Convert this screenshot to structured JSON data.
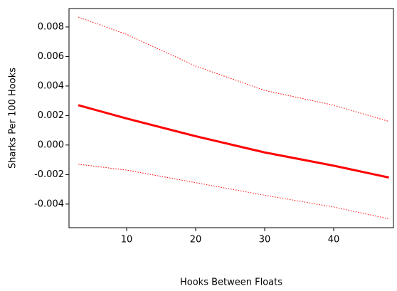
{
  "chart_data": {
    "type": "line",
    "x_label": "Hooks Between Floats",
    "y_label": "Sharks Per 100 Hooks",
    "x": [
      3,
      10,
      20,
      30,
      40,
      48
    ],
    "series": [
      {
        "color": "#ff0000",
        "line_style": "dotted",
        "values": [
          0.00867,
          0.0075,
          0.00535,
          0.0037,
          0.0027,
          0.0016
        ]
      },
      {
        "color": "#ff0000",
        "line_style": "solid",
        "values": [
          0.0027,
          0.0018,
          0.0006,
          -0.0005,
          -0.0014,
          -0.0022
        ]
      },
      {
        "color": "#ff0000",
        "line_style": "dotted",
        "values": [
          -0.0013,
          -0.0017,
          -0.00255,
          -0.0034,
          -0.0042,
          -0.005
        ]
      }
    ],
    "xlim": [
      1.65,
      48.66
    ],
    "xticks": [
      10,
      20,
      30,
      40
    ],
    "ylim": [
      -0.0056,
      0.00925
    ],
    "yticks": [
      -0.004,
      -0.002,
      {
        "value": 0,
        "label": "0.000"
      },
      0.002,
      0.004,
      0.006,
      0.008
    ],
    "grid": false
  }
}
